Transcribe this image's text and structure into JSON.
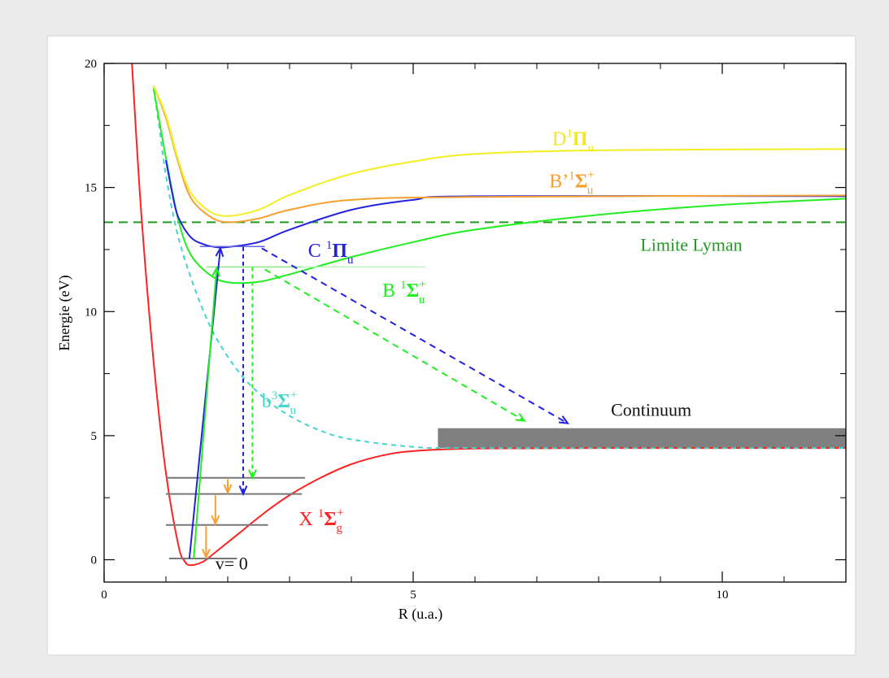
{
  "chart_data": {
    "type": "line",
    "xlabel": "R (u.a.)",
    "ylabel": "Energie (eV)",
    "xlim": [
      0,
      12
    ],
    "ylim": [
      -0.9,
      20
    ],
    "xticks": [
      0,
      5,
      10
    ],
    "yticks": [
      0,
      5,
      10,
      15,
      20
    ],
    "curves": [
      {
        "id": "X",
        "color": "#ff2222",
        "dash": "",
        "points": [
          [
            0.45,
            20
          ],
          [
            0.6,
            14
          ],
          [
            0.8,
            8
          ],
          [
            1.0,
            3.5
          ],
          [
            1.2,
            0.6
          ],
          [
            1.3,
            -0.05
          ],
          [
            1.4,
            -0.22
          ],
          [
            1.6,
            -0.08
          ],
          [
            1.8,
            0.3
          ],
          [
            2.2,
            1.1
          ],
          [
            2.6,
            1.9
          ],
          [
            3.0,
            2.6
          ],
          [
            3.5,
            3.3
          ],
          [
            4.0,
            3.85
          ],
          [
            4.5,
            4.2
          ],
          [
            5.0,
            4.38
          ],
          [
            6.0,
            4.48
          ],
          [
            8.0,
            4.5
          ],
          [
            12,
            4.5
          ]
        ]
      },
      {
        "id": "b",
        "color": "#44d6cc",
        "dash": "6,5",
        "points": [
          [
            0.8,
            19
          ],
          [
            0.9,
            17.3
          ],
          [
            1.0,
            15.5
          ],
          [
            1.2,
            13
          ],
          [
            1.5,
            10.7
          ],
          [
            1.8,
            9.0
          ],
          [
            2.2,
            7.5
          ],
          [
            2.6,
            6.5
          ],
          [
            3.0,
            5.8
          ],
          [
            3.5,
            5.2
          ],
          [
            4.0,
            4.85
          ],
          [
            5.0,
            4.55
          ],
          [
            6.0,
            4.5
          ],
          [
            12,
            4.5
          ]
        ]
      },
      {
        "id": "B",
        "color": "#22ee22",
        "dash": "",
        "points": [
          [
            0.8,
            19
          ],
          [
            1.0,
            16.2
          ],
          [
            1.2,
            13.7
          ],
          [
            1.4,
            12.3
          ],
          [
            1.7,
            11.5
          ],
          [
            2.0,
            11.18
          ],
          [
            2.5,
            11.2
          ],
          [
            3.0,
            11.5
          ],
          [
            4.0,
            12.2
          ],
          [
            5.0,
            12.8
          ],
          [
            6.0,
            13.3
          ],
          [
            8.0,
            13.9
          ],
          [
            10.0,
            14.3
          ],
          [
            12,
            14.55
          ]
        ]
      },
      {
        "id": "C",
        "color": "#2222dd",
        "dash": "",
        "points": [
          [
            1.0,
            16.1
          ],
          [
            1.1,
            14.8
          ],
          [
            1.2,
            13.8
          ],
          [
            1.4,
            13.0
          ],
          [
            1.6,
            12.72
          ],
          [
            1.8,
            12.6
          ],
          [
            2.0,
            12.6
          ],
          [
            2.5,
            12.8
          ],
          [
            3.0,
            13.3
          ],
          [
            4.0,
            14.1
          ],
          [
            5.0,
            14.5
          ],
          [
            6.0,
            14.65
          ],
          [
            12,
            14.65
          ]
        ]
      },
      {
        "id": "Bp",
        "color": "#f5a030",
        "dash": "",
        "points": [
          [
            0.8,
            19.1
          ],
          [
            1.0,
            17.8
          ],
          [
            1.2,
            16.0
          ],
          [
            1.4,
            14.6
          ],
          [
            1.7,
            13.85
          ],
          [
            2.0,
            13.6
          ],
          [
            2.5,
            13.75
          ],
          [
            3.0,
            14.1
          ],
          [
            4.0,
            14.5
          ],
          [
            6.0,
            14.62
          ],
          [
            12,
            14.68
          ]
        ]
      },
      {
        "id": "D",
        "color": "#f2ee22",
        "dash": "",
        "points": [
          [
            0.8,
            19.1
          ],
          [
            1.0,
            17.9
          ],
          [
            1.2,
            16.1
          ],
          [
            1.4,
            14.8
          ],
          [
            1.7,
            14.05
          ],
          [
            2.0,
            13.85
          ],
          [
            2.5,
            14.1
          ],
          [
            3.0,
            14.7
          ],
          [
            4.0,
            15.55
          ],
          [
            5.0,
            16.05
          ],
          [
            6.0,
            16.35
          ],
          [
            8.0,
            16.5
          ],
          [
            12,
            16.55
          ]
        ]
      }
    ],
    "lyman_limit": {
      "y": 13.6,
      "color": "#229922"
    },
    "continuum": {
      "x1": 5.4,
      "x2": 12,
      "y1": 4.5,
      "y2": 5.3,
      "color": "#808080"
    },
    "continuum_red_line": {
      "x1": 7.5,
      "x2": 12,
      "y": 4.5
    },
    "levels": [
      {
        "x1": 1.0,
        "x2": 3.25,
        "y": 3.3
      },
      {
        "x1": 1.0,
        "x2": 3.2,
        "y": 2.65
      },
      {
        "x1": 1.0,
        "x2": 2.65,
        "y": 1.4
      },
      {
        "x1": 1.05,
        "x2": 2.15,
        "y": 0.05
      }
    ],
    "upper_levels": [
      {
        "x1": 1.55,
        "x2": 2.6,
        "y": 12.62,
        "color": "#6666dd"
      },
      {
        "x1": 1.65,
        "x2": 3.2,
        "y": 11.8,
        "color": "#88ee88"
      },
      {
        "x1": 3.2,
        "x2": 5.2,
        "y": 11.8,
        "color": "#bbf5bb"
      }
    ],
    "arrows": [
      {
        "from": [
          1.38,
          0.05
        ],
        "to": [
          1.88,
          12.55
        ],
        "color": "#2222dd",
        "dash": ""
      },
      {
        "from": [
          1.45,
          0.05
        ],
        "to": [
          1.82,
          11.75
        ],
        "color": "#22ee22",
        "dash": ""
      },
      {
        "from": [
          2.25,
          12.6
        ],
        "to": [
          2.25,
          2.65
        ],
        "color": "#2222dd",
        "dash": "5,4"
      },
      {
        "from": [
          2.4,
          11.8
        ],
        "to": [
          2.4,
          3.3
        ],
        "color": "#22ee22",
        "dash": "5,4"
      },
      {
        "from": [
          2.55,
          12.55
        ],
        "to": [
          7.5,
          5.5
        ],
        "color": "#2222dd",
        "dash": "8,6"
      },
      {
        "from": [
          2.6,
          11.7
        ],
        "to": [
          6.8,
          5.6
        ],
        "color": "#22ee22",
        "dash": "8,6"
      },
      {
        "from": [
          2.0,
          3.25
        ],
        "to": [
          2.0,
          2.7
        ],
        "color": "#f5a030",
        "dash": ""
      },
      {
        "from": [
          1.8,
          2.6
        ],
        "to": [
          1.8,
          1.45
        ],
        "color": "#f5a030",
        "dash": ""
      },
      {
        "from": [
          1.65,
          1.35
        ],
        "to": [
          1.65,
          0.1
        ],
        "color": "#f5a030",
        "dash": ""
      }
    ],
    "labels": [
      {
        "id": "D",
        "main": "D",
        "sup": "1",
        "sym": "Π",
        "sup2": "",
        "sub": "u",
        "color": "#f2e822",
        "x": 7.25,
        "y": 16.7
      },
      {
        "id": "Bp",
        "main": "B’",
        "sup": "1",
        "sym": "Σ",
        "sup2": "+",
        "sub": "u",
        "color": "#f5a030",
        "x": 7.2,
        "y": 15.0
      },
      {
        "id": "C",
        "main": "C ",
        "sup": "1",
        "sym": "Π",
        "sup2": "",
        "sub": "u",
        "color": "#2222dd",
        "x": 3.3,
        "y": 12.2
      },
      {
        "id": "B",
        "main": "B ",
        "sup": "1",
        "sym": "Σ",
        "sup2": "+",
        "sub": "u",
        "color": "#22ee22",
        "x": 4.5,
        "y": 10.6
      },
      {
        "id": "b",
        "main": "b",
        "sup": "3",
        "sym": "Σ",
        "sup2": "+",
        "sub": "u",
        "color": "#44d6cc",
        "x": 2.55,
        "y": 6.15
      },
      {
        "id": "X",
        "main": "X ",
        "sup": "1",
        "sym": "Σ",
        "sup2": "+",
        "sub": "g",
        "color": "#ff2222",
        "x": 3.15,
        "y": 1.4
      }
    ],
    "plain_labels": [
      {
        "text": "Limite Lyman",
        "color": "#229922",
        "x": 9.5,
        "y": 12.45,
        "anchor": "middle"
      },
      {
        "text": "Continuum",
        "color": "#111111",
        "x": 8.85,
        "y": 5.8,
        "anchor": "middle"
      },
      {
        "text": "v= 0",
        "color": "#111111",
        "x": 1.8,
        "y": -0.4,
        "anchor": "start"
      }
    ]
  }
}
